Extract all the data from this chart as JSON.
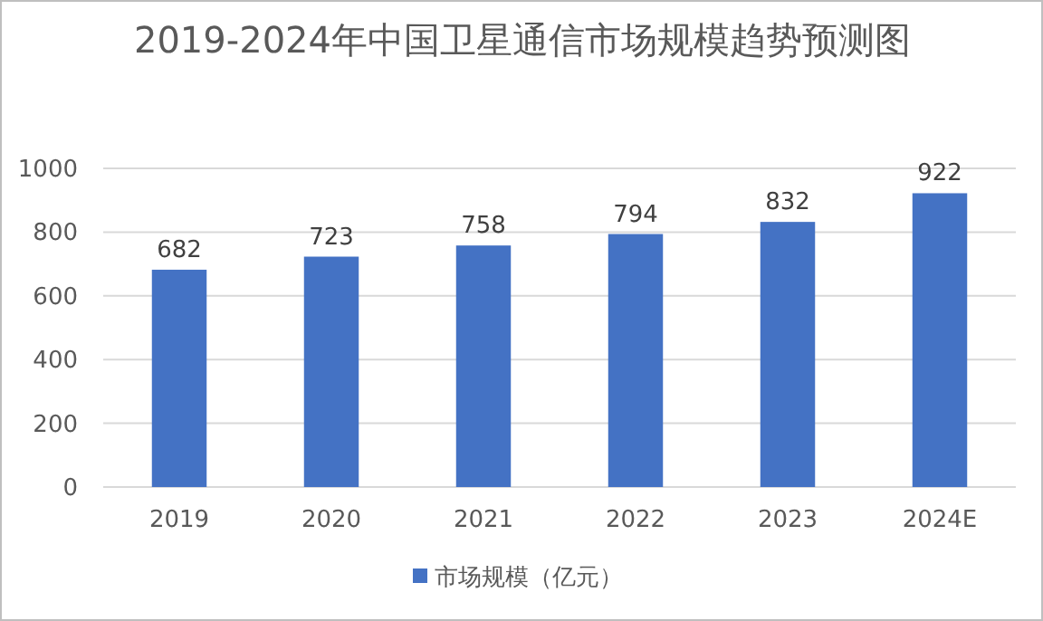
{
  "chart_data": {
    "type": "bar",
    "title": "2019-2024年中国卫星通信市场规模趋势预测图",
    "categories": [
      "2019",
      "2020",
      "2021",
      "2022",
      "2023",
      "2024E"
    ],
    "series": [
      {
        "name": "市场规模（亿元）",
        "color": "#4472c4",
        "values": [
          682,
          723,
          758,
          794,
          832,
          922
        ]
      }
    ],
    "ylim": [
      0,
      1000
    ],
    "yticks": [
      0,
      200,
      400,
      600,
      800,
      1000
    ],
    "grid": "y",
    "legend": "bottom",
    "data_labels": true
  }
}
